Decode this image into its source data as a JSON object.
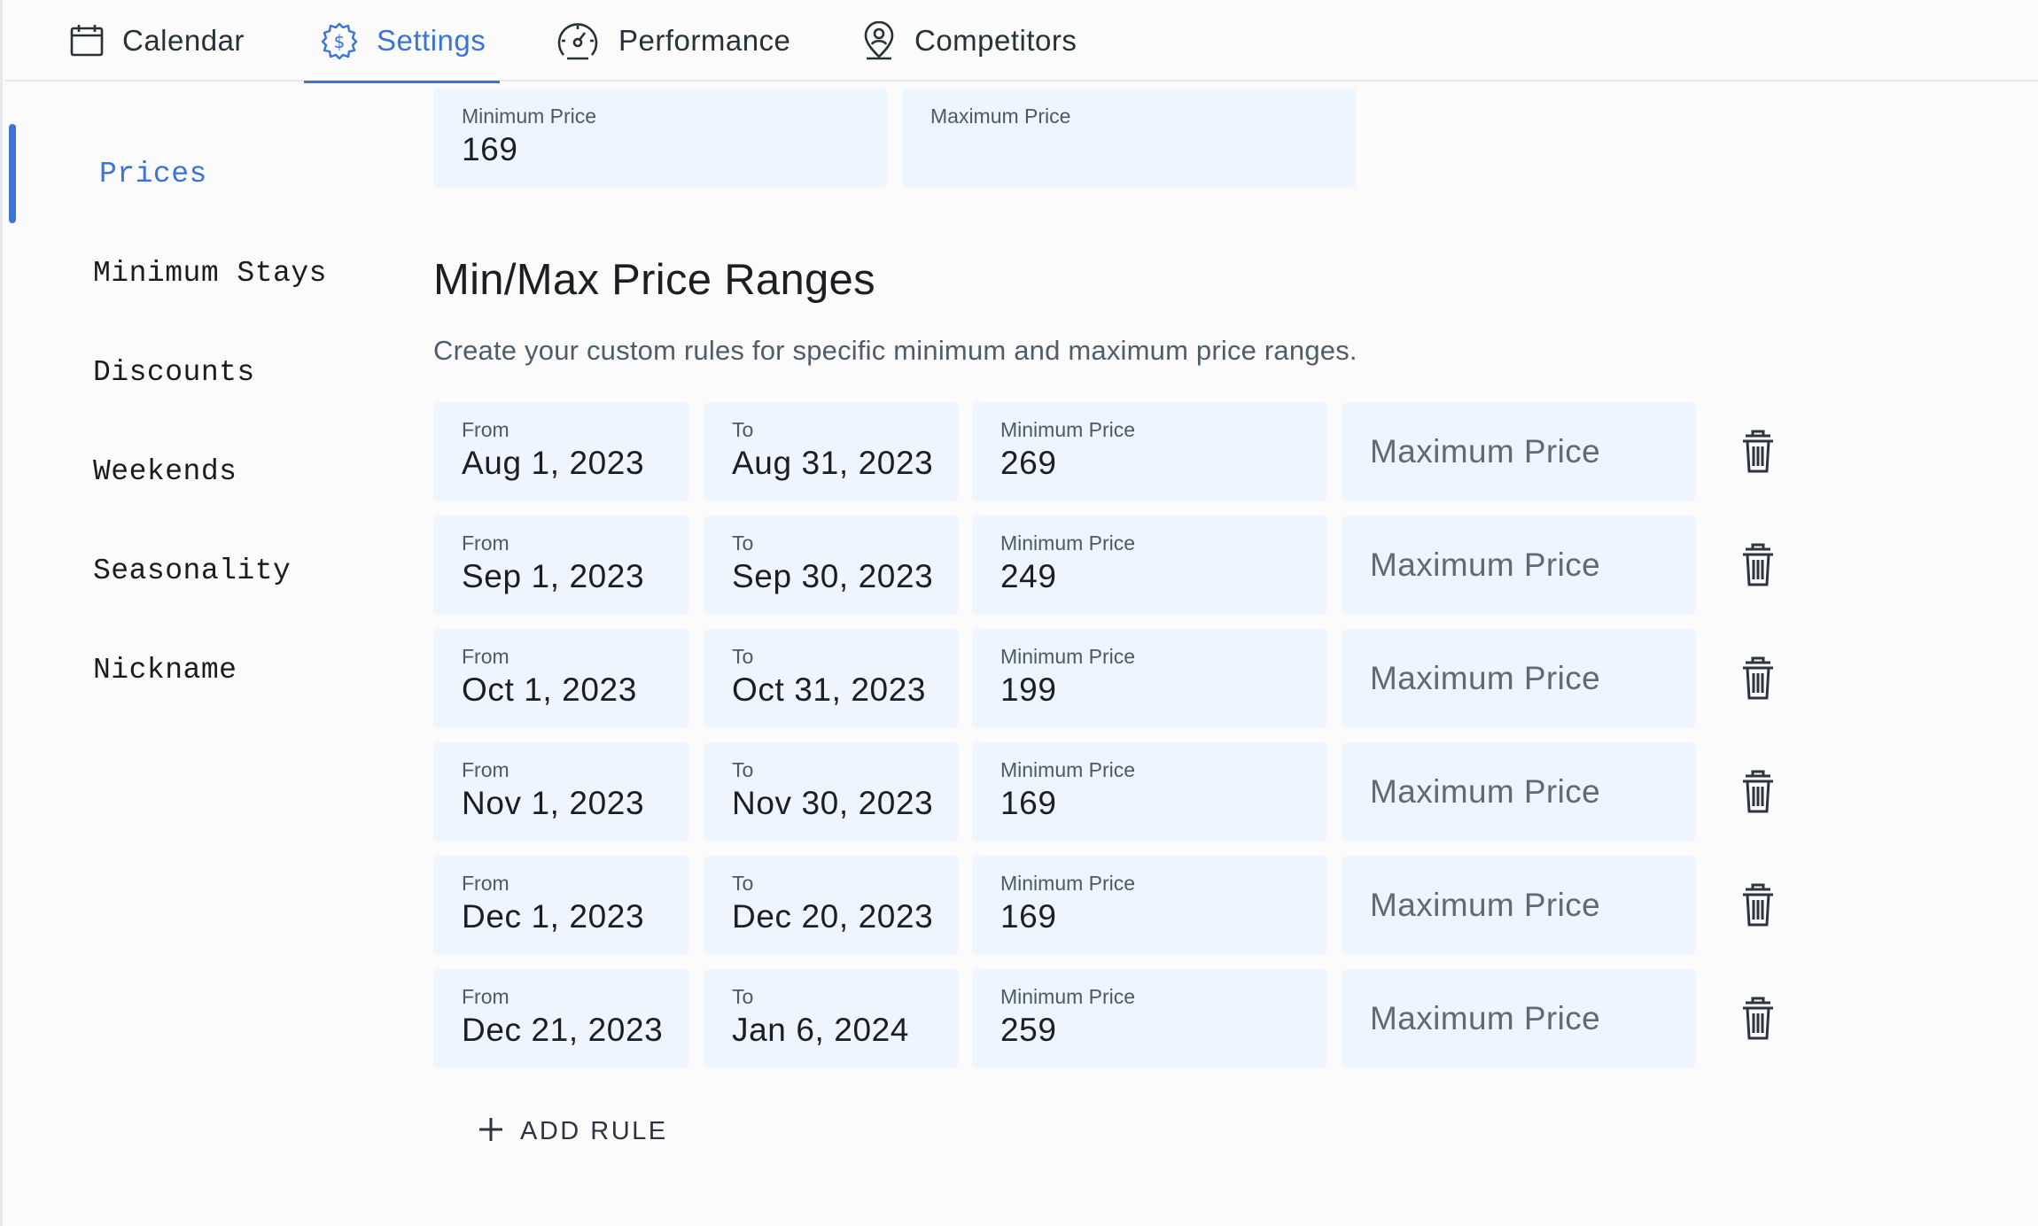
{
  "nav": {
    "tabs": [
      {
        "id": "calendar",
        "label": "Calendar",
        "icon": "calendar-icon",
        "active": false
      },
      {
        "id": "settings",
        "label": "Settings",
        "icon": "gear-dollar-icon",
        "active": true
      },
      {
        "id": "performance",
        "label": "Performance",
        "icon": "gauge-icon",
        "active": false
      },
      {
        "id": "competitors",
        "label": "Competitors",
        "icon": "location-person-icon",
        "active": false
      }
    ]
  },
  "sidebar": {
    "items": [
      {
        "label": "Prices",
        "active": true
      },
      {
        "label": "Minimum Stays",
        "active": false
      },
      {
        "label": "Discounts",
        "active": false
      },
      {
        "label": "Weekends",
        "active": false
      },
      {
        "label": "Seasonality",
        "active": false
      },
      {
        "label": "Nickname",
        "active": false
      }
    ]
  },
  "base_prices": {
    "minimum": {
      "label": "Minimum Price",
      "value": "169"
    },
    "maximum": {
      "label": "Maximum Price",
      "value": ""
    }
  },
  "ranges": {
    "title": "Min/Max Price Ranges",
    "description": "Create your custom rules for specific minimum and maximum price ranges.",
    "labels": {
      "from": "From",
      "to": "To",
      "min": "Minimum Price",
      "max_placeholder": "Maximum Price"
    },
    "rules": [
      {
        "from": "Aug 1, 2023",
        "to": "Aug 31, 2023",
        "min": "269"
      },
      {
        "from": "Sep 1, 2023",
        "to": "Sep 30, 2023",
        "min": "249"
      },
      {
        "from": "Oct 1, 2023",
        "to": "Oct 31, 2023",
        "min": "199"
      },
      {
        "from": "Nov 1, 2023",
        "to": "Nov 30, 2023",
        "min": "169"
      },
      {
        "from": "Dec 1, 2023",
        "to": "Dec 20, 2023",
        "min": "169"
      },
      {
        "from": "Dec 21, 2023",
        "to": "Jan 6, 2024",
        "min": "259"
      }
    ],
    "add_rule_label": "ADD RULE"
  },
  "colors": {
    "accent": "#3b74d8",
    "field_bg": "#eff5fe",
    "page_bg": "#fbfbfb"
  }
}
